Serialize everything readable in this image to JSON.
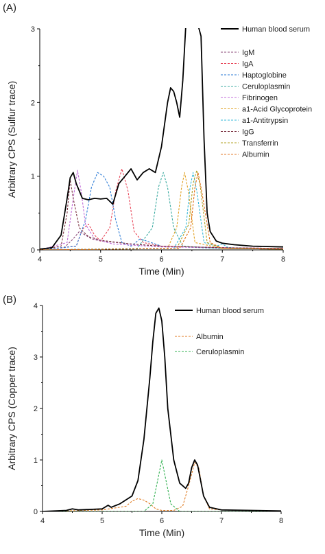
{
  "chart_data": [
    {
      "panel_label": "(A)",
      "type": "line",
      "xlabel": "Time (Min)",
      "ylabel": "Arbitrary CPS (Sulfur trace)",
      "xlim": [
        4,
        8
      ],
      "ylim": [
        0,
        3
      ],
      "x_ticks": [
        "4",
        "5",
        "6",
        "7",
        "8"
      ],
      "y_ticks": [
        "0",
        "1",
        "2",
        "3"
      ],
      "legend_position": "top-right",
      "series": [
        {
          "name": "Human blood serum",
          "color": "#000000",
          "style": "solid",
          "x": [
            4.0,
            4.2,
            4.35,
            4.45,
            4.5,
            4.55,
            4.6,
            4.7,
            4.8,
            4.9,
            5.0,
            5.1,
            5.2,
            5.3,
            5.4,
            5.5,
            5.6,
            5.7,
            5.8,
            5.9,
            6.0,
            6.1,
            6.15,
            6.2,
            6.25,
            6.3,
            6.35,
            6.4,
            6.45,
            6.5,
            6.55,
            6.6,
            6.65,
            6.7,
            6.75,
            6.8,
            6.9,
            7.0,
            7.2,
            7.5,
            8.0
          ],
          "y": [
            0.01,
            0.03,
            0.2,
            0.7,
            0.98,
            1.05,
            0.9,
            0.7,
            0.68,
            0.7,
            0.69,
            0.7,
            0.62,
            0.9,
            1.0,
            1.1,
            0.95,
            1.05,
            1.1,
            1.05,
            1.4,
            2.0,
            2.2,
            2.15,
            2.0,
            1.8,
            2.3,
            3.05,
            3.05,
            3.05,
            3.05,
            3.05,
            2.9,
            1.5,
            0.5,
            0.25,
            0.12,
            0.09,
            0.07,
            0.05,
            0.04
          ]
        },
        {
          "name": "IgM",
          "color": "#8b4a7a",
          "style": "dashed",
          "x": [
            4.0,
            4.4,
            4.55,
            4.65,
            4.75,
            4.85,
            5.0,
            5.5,
            6.0,
            7.0,
            8.0
          ],
          "y": [
            0.0,
            0.03,
            0.15,
            0.25,
            0.2,
            0.15,
            0.12,
            0.08,
            0.05,
            0.03,
            0.02
          ]
        },
        {
          "name": "IgA",
          "color": "#e8475a",
          "style": "dashed",
          "x": [
            4.0,
            4.6,
            4.7,
            4.8,
            4.9,
            5.0,
            5.15,
            5.25,
            5.35,
            5.45,
            5.55,
            5.7,
            6.0,
            7.0,
            8.0
          ],
          "y": [
            0.0,
            0.05,
            0.28,
            0.35,
            0.2,
            0.12,
            0.3,
            0.8,
            1.1,
            0.8,
            0.25,
            0.1,
            0.05,
            0.03,
            0.02
          ]
        },
        {
          "name": "Haptoglobine",
          "color": "#2a7ad5",
          "style": "dashed",
          "x": [
            4.0,
            4.6,
            4.75,
            4.85,
            4.95,
            5.05,
            5.15,
            5.25,
            5.35,
            5.5,
            5.65,
            6.0,
            7.0,
            8.0
          ],
          "y": [
            0.0,
            0.05,
            0.4,
            0.85,
            1.05,
            1.0,
            0.85,
            0.4,
            0.1,
            0.05,
            0.15,
            0.05,
            0.02,
            0.01
          ]
        },
        {
          "name": "Ceruloplasmin",
          "color": "#3aaaa0",
          "style": "dashed",
          "x": [
            4.0,
            5.6,
            5.85,
            5.95,
            6.03,
            6.1,
            6.2,
            6.35,
            7.0,
            8.0
          ],
          "y": [
            0.0,
            0.02,
            0.3,
            0.85,
            1.05,
            0.85,
            0.3,
            0.05,
            0.02,
            0.01
          ]
        },
        {
          "name": "Fibrinogen",
          "color": "#c06ad8",
          "style": "dashed",
          "x": [
            4.0,
            4.45,
            4.55,
            4.62,
            4.68,
            4.75,
            4.9,
            5.2,
            6.0,
            8.0
          ],
          "y": [
            0.0,
            0.1,
            0.7,
            1.08,
            0.8,
            0.35,
            0.15,
            0.08,
            0.04,
            0.02
          ]
        },
        {
          "name": "a1-Acid Glycoprotein",
          "color": "#e0a020",
          "style": "dashed",
          "x": [
            4.0,
            6.1,
            6.25,
            6.33,
            6.38,
            6.44,
            6.55,
            7.0,
            8.0
          ],
          "y": [
            0.0,
            0.02,
            0.3,
            0.85,
            1.05,
            0.8,
            0.1,
            0.02,
            0.01
          ]
        },
        {
          "name": "a1-Antitrypsin",
          "color": "#35b8d8",
          "style": "dashed",
          "x": [
            4.0,
            6.2,
            6.4,
            6.47,
            6.52,
            6.58,
            6.7,
            6.9,
            7.0,
            7.1,
            8.0
          ],
          "y": [
            0.0,
            0.02,
            0.3,
            0.85,
            1.05,
            0.8,
            0.1,
            0.05,
            0.08,
            0.03,
            0.01
          ]
        },
        {
          "name": "IgG",
          "color": "#7a3040",
          "style": "dashed",
          "x": [
            4.0,
            4.35,
            4.45,
            4.5,
            4.55,
            4.65,
            4.8,
            5.0,
            5.5,
            6.0,
            7.0,
            8.0
          ],
          "y": [
            0.0,
            0.05,
            0.5,
            0.95,
            0.7,
            0.3,
            0.18,
            0.13,
            0.08,
            0.05,
            0.03,
            0.02
          ]
        },
        {
          "name": "Transferrin",
          "color": "#b0a020",
          "style": "dashed",
          "x": [
            4.0,
            6.25,
            6.45,
            6.52,
            6.58,
            6.64,
            6.75,
            7.0,
            8.0
          ],
          "y": [
            0.0,
            0.02,
            0.35,
            0.9,
            1.08,
            0.85,
            0.1,
            0.02,
            0.01
          ]
        },
        {
          "name": "Albumin",
          "color": "#e06a10",
          "style": "dashed",
          "x": [
            4.0,
            6.3,
            6.48,
            6.55,
            6.6,
            6.66,
            6.8,
            7.0,
            8.0
          ],
          "y": [
            0.0,
            0.02,
            0.3,
            0.85,
            1.05,
            0.8,
            0.1,
            0.02,
            0.01
          ]
        }
      ]
    },
    {
      "panel_label": "(B)",
      "type": "line",
      "xlabel": "Time (Min)",
      "ylabel": "Arbitrary CPS (Copper trace)",
      "xlim": [
        4,
        8
      ],
      "ylim": [
        0,
        4
      ],
      "x_ticks": [
        "4",
        "5",
        "6",
        "7",
        "8"
      ],
      "y_ticks": [
        "0",
        "1",
        "2",
        "3",
        "4"
      ],
      "legend_position": "top-right",
      "series": [
        {
          "name": "Human blood serum",
          "color": "#000000",
          "style": "solid",
          "x": [
            4.0,
            4.4,
            4.5,
            4.6,
            5.0,
            5.1,
            5.15,
            5.3,
            5.5,
            5.6,
            5.7,
            5.8,
            5.85,
            5.9,
            5.95,
            6.0,
            6.05,
            6.1,
            6.2,
            6.3,
            6.4,
            6.45,
            6.5,
            6.55,
            6.6,
            6.65,
            6.7,
            6.8,
            7.0,
            7.5,
            8.0
          ],
          "y": [
            0.0,
            0.02,
            0.05,
            0.03,
            0.05,
            0.12,
            0.08,
            0.15,
            0.3,
            0.6,
            1.4,
            2.6,
            3.3,
            3.85,
            3.95,
            3.7,
            3.0,
            2.0,
            1.0,
            0.55,
            0.45,
            0.55,
            0.85,
            1.0,
            0.9,
            0.6,
            0.3,
            0.08,
            0.03,
            0.02,
            0.01
          ]
        },
        {
          "name": "Albumin",
          "color": "#e07a20",
          "style": "dashed",
          "x": [
            4.0,
            5.0,
            5.4,
            5.5,
            5.6,
            5.7,
            5.8,
            5.9,
            6.0,
            6.2,
            6.35,
            6.45,
            6.55,
            6.62,
            6.7,
            6.8,
            7.0,
            8.0
          ],
          "y": [
            0.0,
            0.03,
            0.1,
            0.2,
            0.25,
            0.22,
            0.15,
            0.05,
            0.02,
            0.02,
            0.1,
            0.5,
            0.95,
            0.85,
            0.3,
            0.05,
            0.03,
            0.01
          ]
        },
        {
          "name": "Ceruloplasmin",
          "color": "#30b050",
          "style": "dashed",
          "x": [
            4.0,
            5.7,
            5.85,
            5.93,
            6.0,
            6.07,
            6.15,
            6.3,
            6.5,
            8.0
          ],
          "y": [
            0.0,
            0.0,
            0.15,
            0.6,
            1.0,
            0.6,
            0.15,
            0.0,
            0.0,
            0.0
          ]
        }
      ]
    }
  ]
}
